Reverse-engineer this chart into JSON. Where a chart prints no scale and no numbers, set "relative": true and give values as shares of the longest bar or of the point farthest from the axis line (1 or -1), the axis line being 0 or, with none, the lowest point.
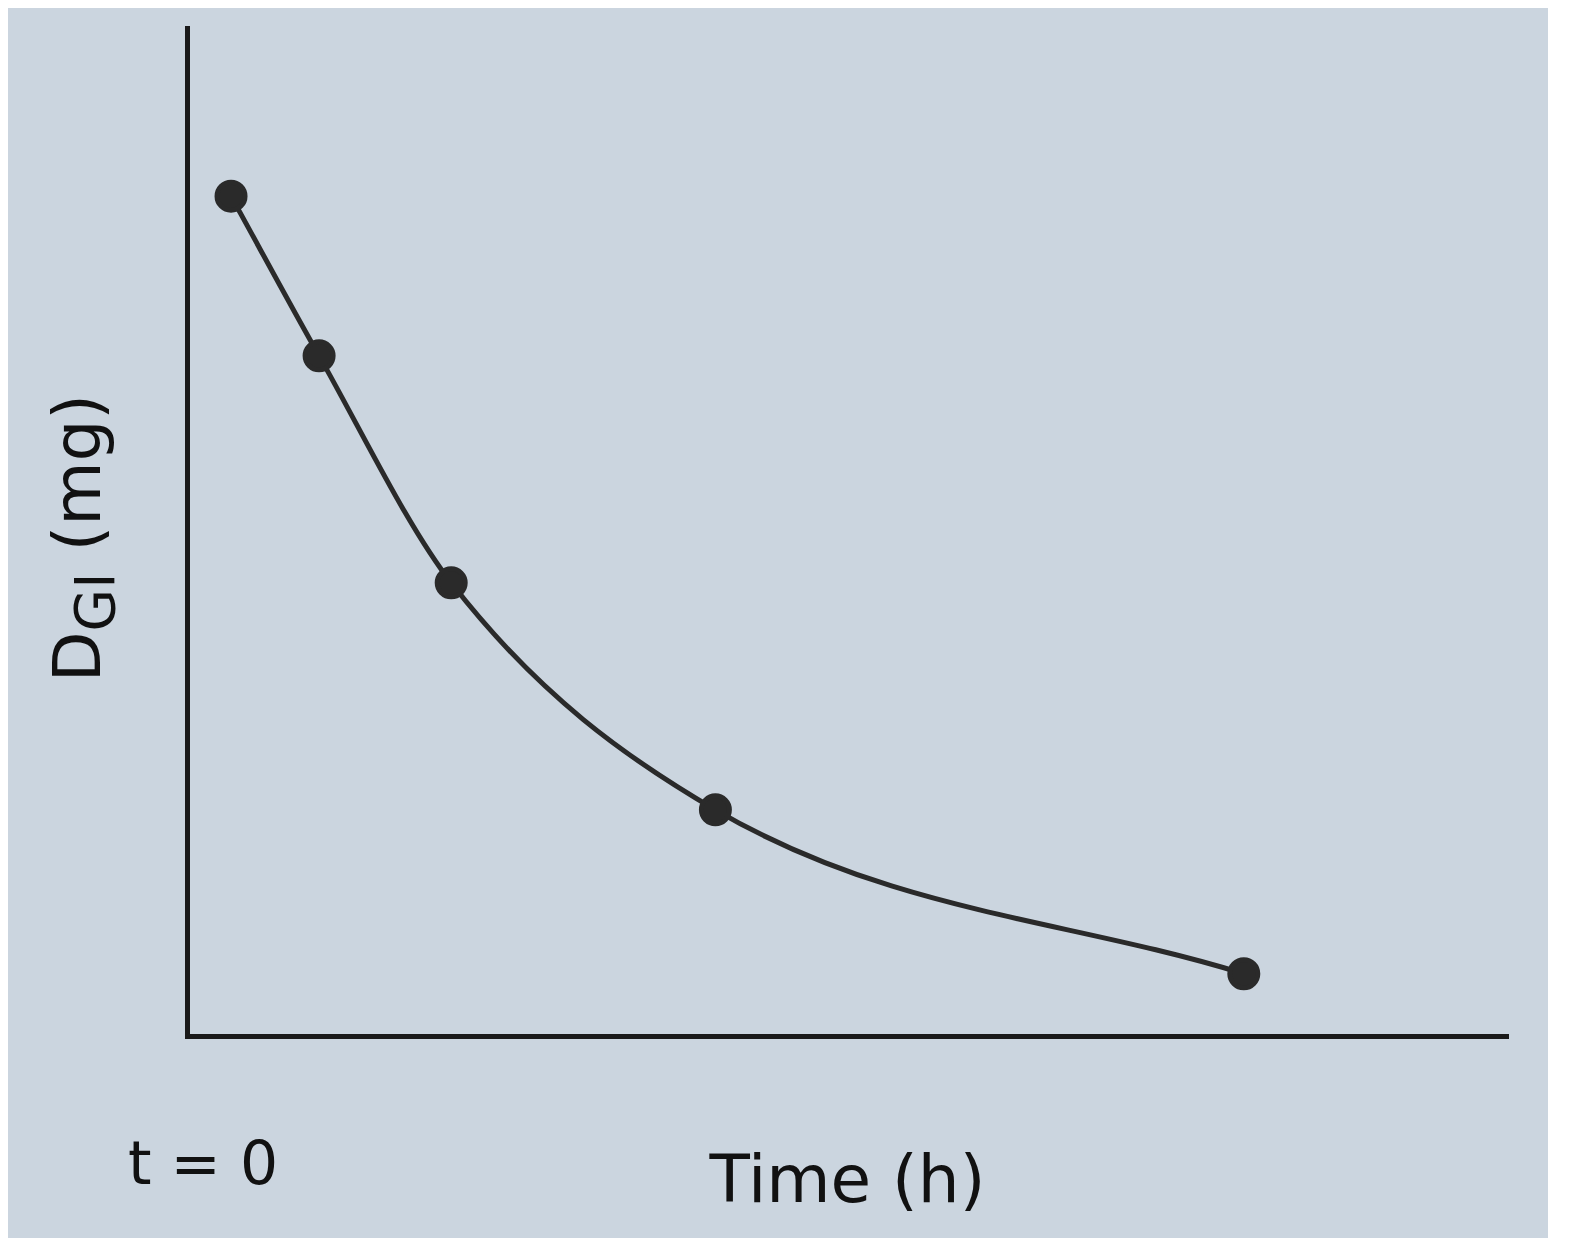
{
  "chart_data": {
    "type": "line",
    "relative": true,
    "xlabel": "Time (h)",
    "ylabel": "D$_{GI}$ (mg)",
    "annotations": [
      "t = 0"
    ],
    "grid": false,
    "legend": false,
    "marker": "circle",
    "color": "#2a2a2a",
    "categories": [
      null,
      null,
      null,
      null,
      null,
      null,
      null,
      null,
      null,
      null,
      null,
      null,
      null,
      null,
      null,
      null,
      null,
      null,
      null,
      null,
      null,
      null,
      null,
      null,
      null,
      null,
      null,
      null,
      null,
      null,
      null
    ],
    "values": [
      null,
      1.0,
      null,
      0.81,
      null,
      null,
      0.54,
      null,
      null,
      null,
      null,
      null,
      0.27,
      null,
      null,
      null,
      null,
      null,
      null,
      null,
      null,
      null,
      null,
      null,
      0.075,
      null,
      null,
      null,
      null,
      null,
      null
    ]
  }
}
